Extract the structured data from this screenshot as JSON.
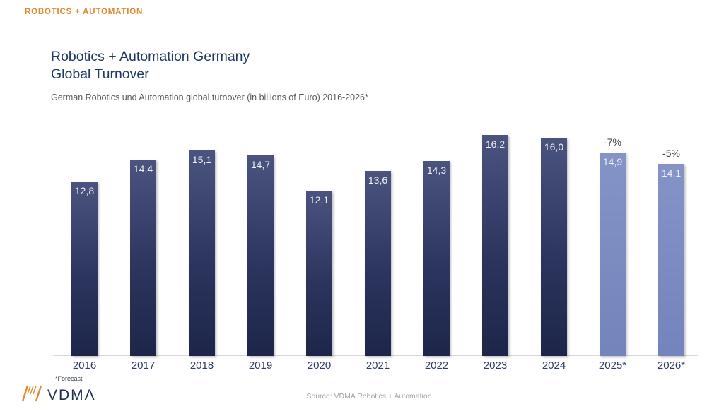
{
  "page": {
    "brand_header": "ROBOTICS + AUTOMATION",
    "title_line1": "Robotics + Automation Germany",
    "title_line2": "Global Turnover",
    "subtitle": "German Robotics und Automation global turnover (in billions of Euro) 2016-2026*",
    "footnote": "*Forecast",
    "source": "Source: VDMA Robotics + Automation",
    "logo_text": "VDMΛ"
  },
  "colors": {
    "accent_orange": "#E1892F",
    "title_navy": "#1F3864",
    "bar_dark_top": "#4A547F",
    "bar_dark_bottom": "#1D2649",
    "bar_forecast_light": "#7E8FC3",
    "axis_line_gray": "#D9D9D9",
    "subtitle_gray": "#595959",
    "source_gray": "#A3A3A3",
    "value_label": "#EDEDF2"
  },
  "chart_data": {
    "type": "bar",
    "title": "Robotics + Automation Germany Global Turnover",
    "subtitle": "German Robotics und Automation global turnover (in billions of Euro) 2016-2026*",
    "unit": "billions of Euro",
    "categories": [
      "2016",
      "2017",
      "2018",
      "2019",
      "2020",
      "2021",
      "2022",
      "2023",
      "2024",
      "2025*",
      "2026*"
    ],
    "values": [
      12.8,
      14.4,
      15.1,
      14.7,
      12.1,
      13.6,
      14.3,
      16.2,
      16.0,
      14.9,
      14.1
    ],
    "value_labels": [
      "12,8",
      "14,4",
      "15,1",
      "14,7",
      "12,1",
      "13,6",
      "14,3",
      "16,2",
      "16,0",
      "14,9",
      "14,1"
    ],
    "annotations": [
      null,
      null,
      null,
      null,
      null,
      null,
      null,
      null,
      null,
      "-7%",
      "-5%"
    ],
    "forecast": [
      false,
      false,
      false,
      false,
      false,
      false,
      false,
      false,
      false,
      true,
      true
    ],
    "xlabel": "",
    "ylabel": "",
    "ylim": [
      0,
      17.5
    ],
    "grid": false,
    "legend": "none",
    "value_labels_position": "inside-top",
    "forecast_note": "*Forecast"
  }
}
